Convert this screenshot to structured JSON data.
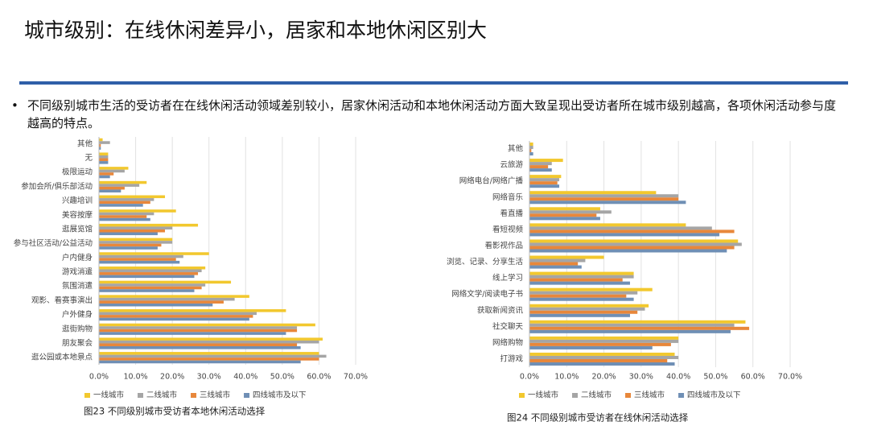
{
  "title": "城市级别：在线休闲差异小，居家和本地休闲区别大",
  "bullet": "不同级别城市生活的受访者在在线休闲活动领域差别较小，居家休闲活动和本地休闲活动方面大致呈现出受访者所在城市级别越高，各项休闲活动参与度越高的特点。",
  "chart_data": [
    {
      "type": "barh",
      "title": "图23 不同级别城市受访者本地休闲活动选择",
      "categories": [
        "其他",
        "无",
        "极限运动",
        "参加会所/俱乐部活动",
        "兴趣培训",
        "美容按摩",
        "逛展览馆",
        "参与社区活动/公益活动",
        "户内健身",
        "游戏消遣",
        "氛围消遣",
        "观影、看赛事演出",
        "户外健身",
        "逛街购物",
        "朋友聚会",
        "逛公园或本地景点"
      ],
      "series": [
        {
          "name": "一线城市",
          "color": "#f2c82e",
          "values": [
            1,
            2.5,
            8,
            13,
            18,
            21,
            27,
            20,
            30,
            29,
            36,
            41,
            51,
            59,
            61,
            60
          ]
        },
        {
          "name": "二线城市",
          "color": "#a5a5a5",
          "values": [
            3,
            2.5,
            7,
            11,
            15,
            15,
            20,
            20,
            23,
            28,
            29,
            37,
            43,
            54,
            60,
            62
          ]
        },
        {
          "name": "三线城市",
          "color": "#e8873a",
          "values": [
            0.5,
            2.5,
            4,
            7,
            14,
            13,
            18,
            17,
            21,
            27,
            28,
            34,
            42,
            54,
            54,
            60
          ]
        },
        {
          "name": "四线城市及以下",
          "color": "#6f8fb5",
          "values": [
            0.5,
            2.5,
            3,
            6,
            12,
            14,
            16,
            16,
            22,
            26,
            26,
            31,
            41,
            51,
            55,
            55
          ]
        }
      ],
      "xlim": [
        0,
        70
      ],
      "xticks": [
        {
          "value": 0,
          "label": "0.0%"
        },
        {
          "value": 10,
          "label": "10.0%"
        },
        {
          "value": 20,
          "label": "20.0%"
        },
        {
          "value": 30,
          "label": "30.0%"
        },
        {
          "value": 40,
          "label": "40.0%"
        },
        {
          "value": 50,
          "label": "50.0%"
        },
        {
          "value": 60,
          "label": "60.0%"
        },
        {
          "value": 70,
          "label": "70.0%"
        }
      ],
      "grid": true
    },
    {
      "type": "barh",
      "title": "图24 不同级别城市受访者在线休闲活动选择",
      "categories": [
        "其他",
        "云旅游",
        "网络电台/网络广播",
        "网络音乐",
        "看直播",
        "看短视频",
        "看影视作品",
        "浏览、记录、分享生活",
        "线上学习",
        "网络文学/阅读电子书",
        "获取新闻资讯",
        "社交聊天",
        "网络购物",
        "打游戏"
      ],
      "series": [
        {
          "name": "一线城市",
          "color": "#f2c82e",
          "values": [
            1,
            9,
            8.5,
            34,
            19,
            42,
            56,
            20,
            28,
            33,
            32,
            58,
            40,
            39
          ]
        },
        {
          "name": "二线城市",
          "color": "#a5a5a5",
          "values": [
            1,
            6,
            8,
            40,
            22,
            49,
            57,
            15,
            28,
            29,
            31,
            55,
            40,
            40
          ]
        },
        {
          "name": "三线城市",
          "color": "#e8873a",
          "values": [
            0.5,
            5,
            7.5,
            40,
            18,
            55,
            55,
            13,
            25,
            26,
            29,
            59,
            38,
            37
          ]
        },
        {
          "name": "四线城市及以下",
          "color": "#6f8fb5",
          "values": [
            1,
            6,
            8,
            42,
            19,
            51,
            53,
            14,
            27,
            28,
            27,
            54,
            33,
            39
          ]
        }
      ],
      "xlim": [
        0,
        70
      ],
      "xticks": [
        {
          "value": 0,
          "label": "0.0%"
        },
        {
          "value": 10,
          "label": "10.0%"
        },
        {
          "value": 20,
          "label": "20.0%"
        },
        {
          "value": 30,
          "label": "30.0%"
        },
        {
          "value": 40,
          "label": "40.0%"
        },
        {
          "value": 50,
          "label": "50.0%"
        },
        {
          "value": 60,
          "label": "60.0%"
        },
        {
          "value": 70,
          "label": "70.0%"
        }
      ],
      "grid": true
    }
  ]
}
